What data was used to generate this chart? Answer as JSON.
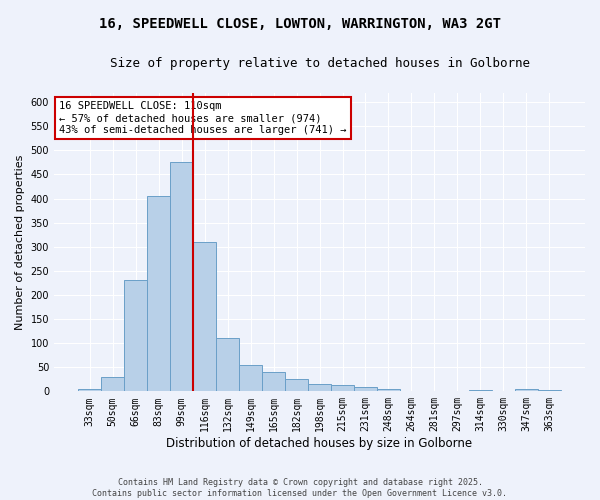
{
  "title_line1": "16, SPEEDWELL CLOSE, LOWTON, WARRINGTON, WA3 2GT",
  "title_line2": "Size of property relative to detached houses in Golborne",
  "xlabel": "Distribution of detached houses by size in Golborne",
  "ylabel": "Number of detached properties",
  "categories": [
    "33sqm",
    "50sqm",
    "66sqm",
    "83sqm",
    "99sqm",
    "116sqm",
    "132sqm",
    "149sqm",
    "165sqm",
    "182sqm",
    "198sqm",
    "215sqm",
    "231sqm",
    "248sqm",
    "264sqm",
    "281sqm",
    "297sqm",
    "314sqm",
    "330sqm",
    "347sqm",
    "363sqm"
  ],
  "values": [
    5,
    30,
    230,
    405,
    475,
    310,
    110,
    55,
    40,
    25,
    15,
    13,
    10,
    4,
    0,
    0,
    0,
    3,
    0,
    4,
    3
  ],
  "bar_color": "#b8d0e8",
  "bar_edge_color": "#6a9fc8",
  "vline_color": "#cc0000",
  "annotation_text": "16 SPEEDWELL CLOSE: 110sqm\n← 57% of detached houses are smaller (974)\n43% of semi-detached houses are larger (741) →",
  "annotation_box_color": "#ffffff",
  "annotation_box_edge": "#cc0000",
  "ylim": [
    0,
    620
  ],
  "yticks": [
    0,
    50,
    100,
    150,
    200,
    250,
    300,
    350,
    400,
    450,
    500,
    550,
    600
  ],
  "background_color": "#eef2fb",
  "grid_color": "#ffffff",
  "footer_text": "Contains HM Land Registry data © Crown copyright and database right 2025.\nContains public sector information licensed under the Open Government Licence v3.0.",
  "title_fontsize": 10,
  "subtitle_fontsize": 9,
  "tick_fontsize": 7,
  "xlabel_fontsize": 8.5,
  "ylabel_fontsize": 8,
  "annot_fontsize": 7.5,
  "footer_fontsize": 6
}
